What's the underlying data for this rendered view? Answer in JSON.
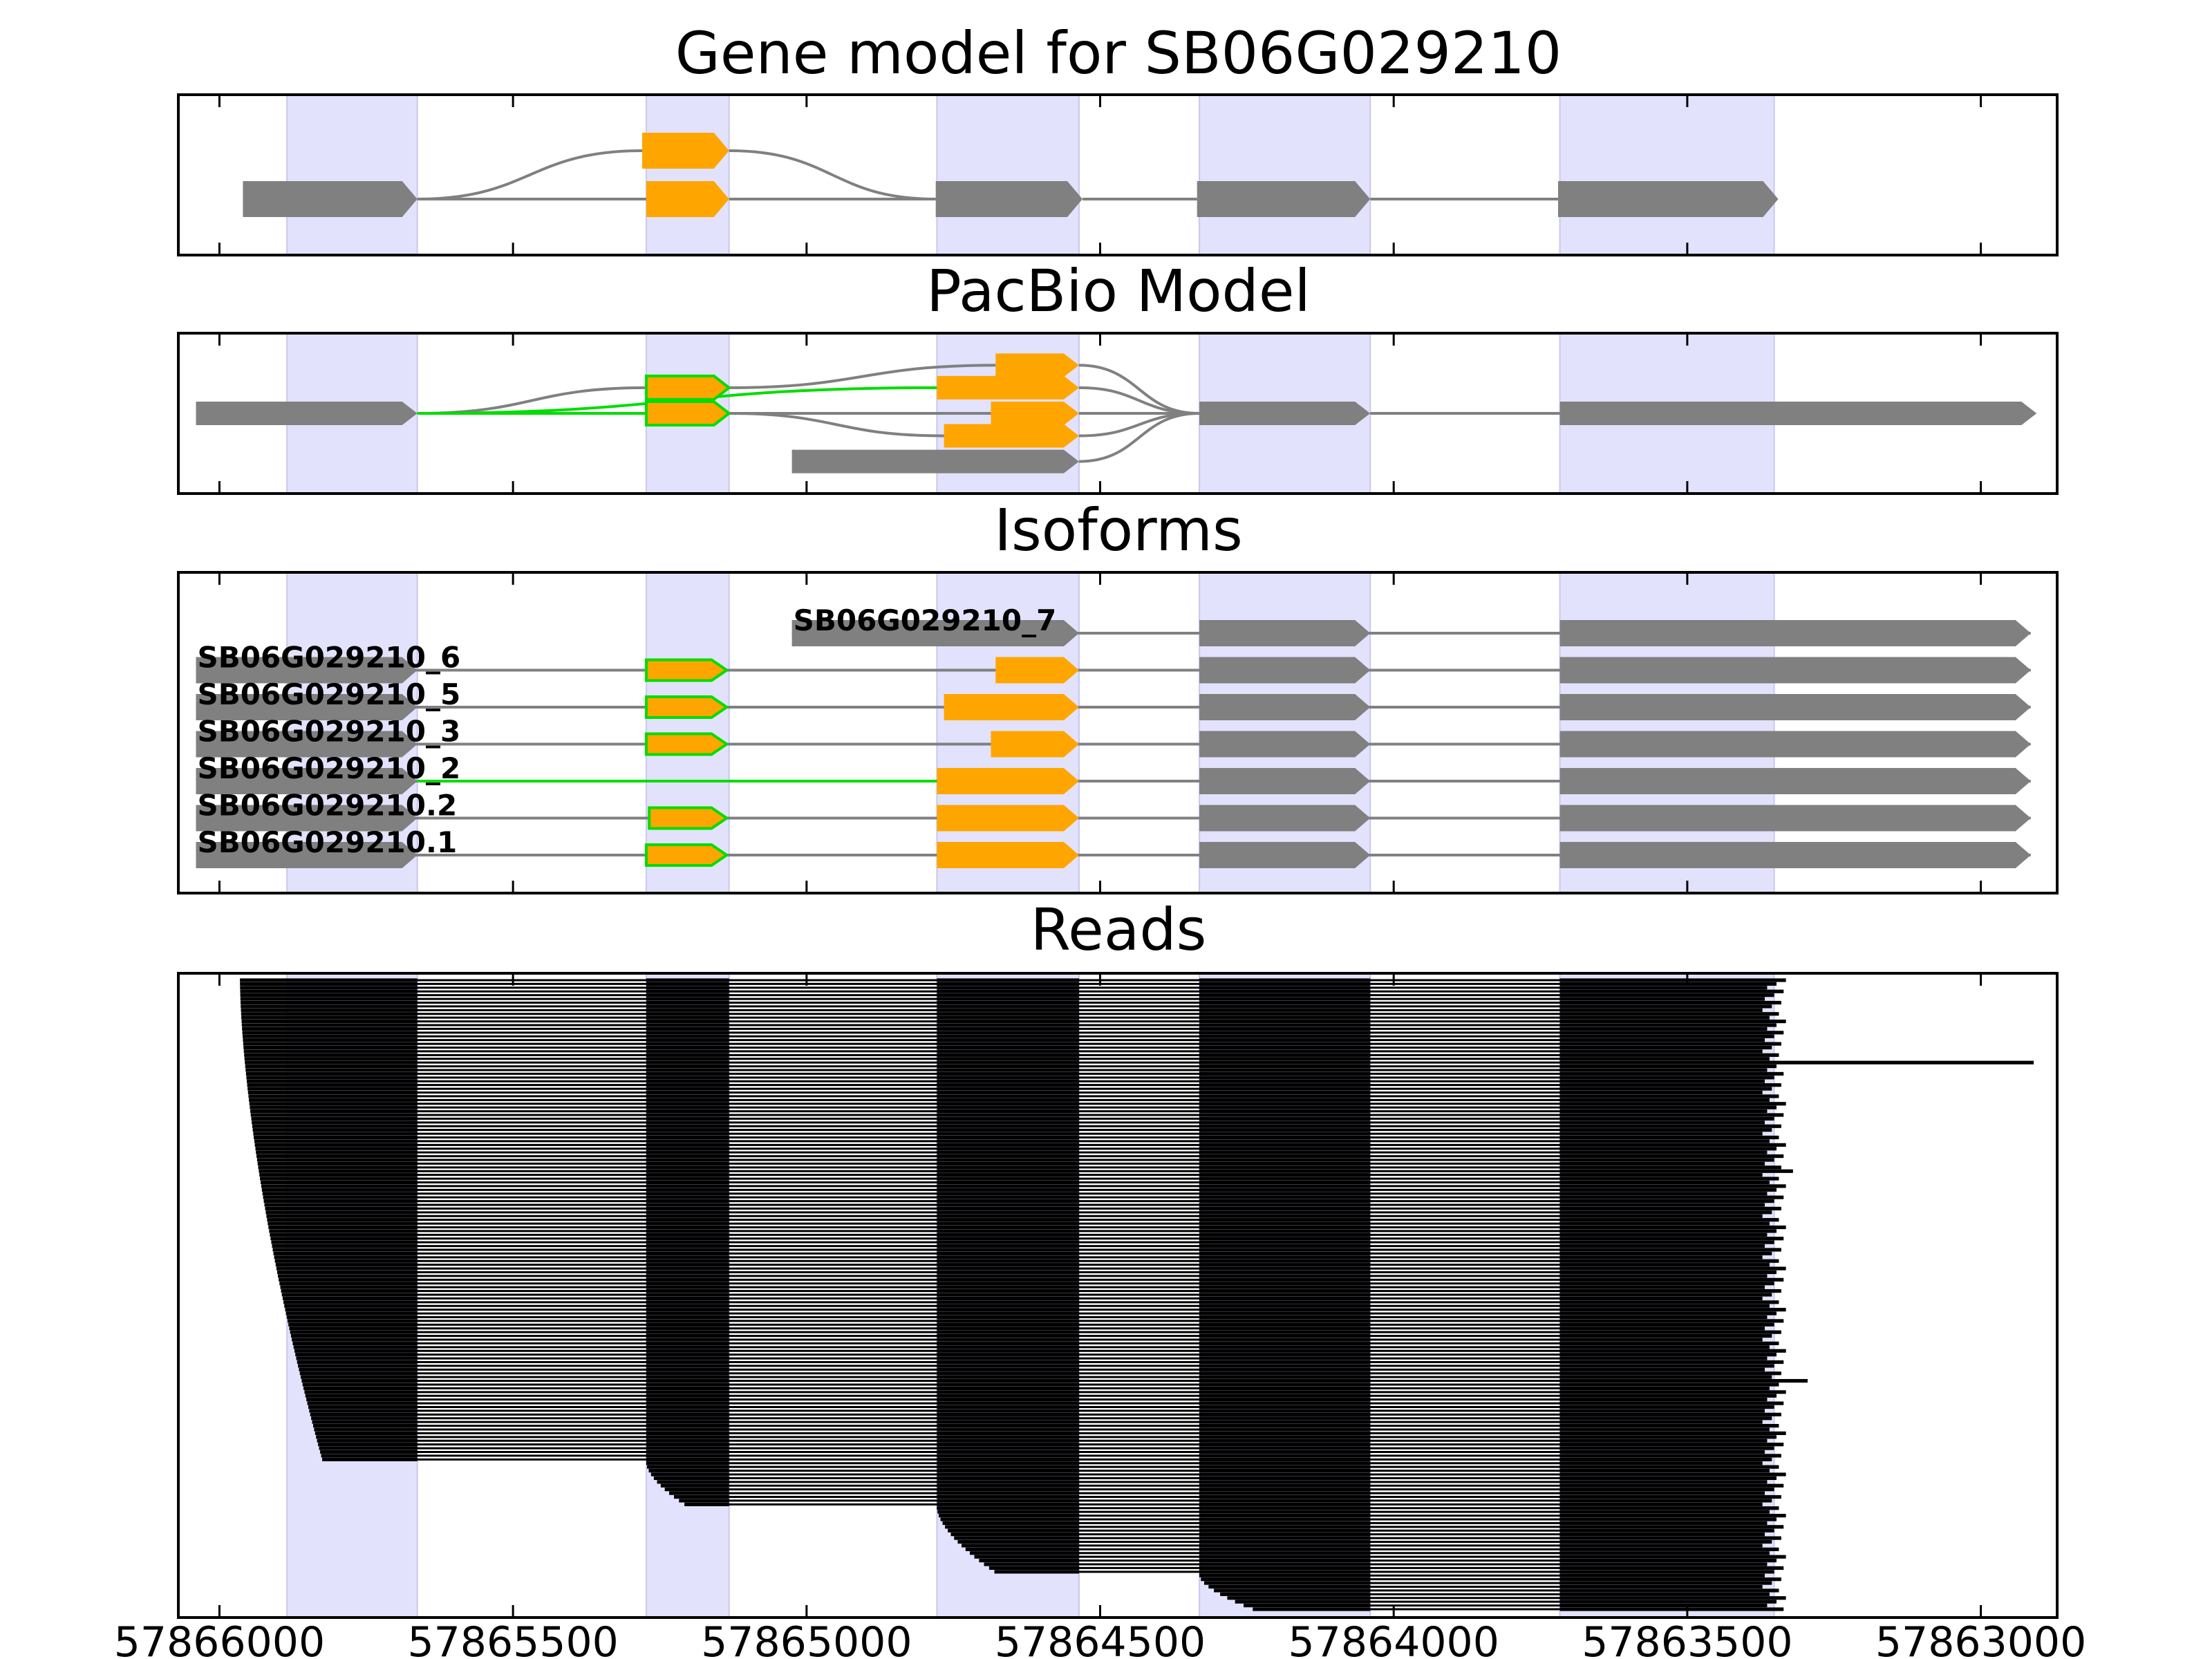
{
  "chart_data": {
    "type": "gene-structure",
    "xaxis": {
      "reversed": true,
      "xlim": [
        57866070,
        57862870
      ],
      "ticks": [
        57866000,
        57865500,
        57865000,
        57864500,
        57864000,
        57863500,
        57863000
      ],
      "tick_labels": [
        "57866000",
        "57865500",
        "57865000",
        "57864500",
        "57864000",
        "57863500",
        "57863000"
      ]
    },
    "highlight_color": "#e2e2fc",
    "colors": {
      "constitutive": "#808080",
      "alternative": "#ffa500",
      "novel_outline": "#00dd00",
      "read": "#000000",
      "intron": "#808080"
    },
    "highlight_regions": [
      [
        57865885,
        57865663
      ],
      [
        57865273,
        57865132
      ],
      [
        57864778,
        57864536
      ],
      [
        57864331,
        57864040
      ],
      [
        57863717,
        57863352
      ]
    ],
    "panels": [
      {
        "title": "Gene model for SB06G029210",
        "rows": 2,
        "exons": [
          {
            "start": 57865960,
            "end": 57865663,
            "row": 1,
            "color": "gray"
          },
          {
            "start": 57865280,
            "end": 57865132,
            "row": 0,
            "color": "orange"
          },
          {
            "start": 57865273,
            "end": 57865132,
            "row": 1,
            "color": "orange"
          },
          {
            "start": 57864780,
            "end": 57864530,
            "row": 1,
            "color": "gray"
          },
          {
            "start": 57864335,
            "end": 57864040,
            "row": 1,
            "color": "gray"
          },
          {
            "start": 57863720,
            "end": 57863345,
            "row": 1,
            "color": "gray"
          }
        ]
      },
      {
        "title": "PacBio Model",
        "exons": [
          {
            "start": 57866040,
            "end": 57865663,
            "y": 0.5,
            "color": "gray"
          },
          {
            "start": 57865273,
            "end": 57865132,
            "y": 0.34,
            "color": "orange",
            "outline": "green"
          },
          {
            "start": 57865273,
            "end": 57865132,
            "y": 0.5,
            "color": "orange",
            "outline": "green"
          },
          {
            "start": 57864678,
            "end": 57864536,
            "y": 0.2,
            "color": "orange"
          },
          {
            "start": 57864778,
            "end": 57864536,
            "y": 0.34,
            "color": "orange"
          },
          {
            "start": 57864686,
            "end": 57864536,
            "y": 0.5,
            "color": "orange"
          },
          {
            "start": 57864766,
            "end": 57864536,
            "y": 0.64,
            "color": "orange"
          },
          {
            "start": 57865025,
            "end": 57864536,
            "y": 0.8,
            "color": "gray"
          },
          {
            "start": 57864331,
            "end": 57864040,
            "y": 0.5,
            "color": "gray"
          },
          {
            "start": 57863717,
            "end": 57862905,
            "y": 0.5,
            "color": "gray"
          }
        ],
        "junctions": [
          {
            "from": 57865663,
            "fy": 0.5,
            "to": 57865273,
            "ty": 0.34,
            "color": "gray"
          },
          {
            "from": 57865663,
            "fy": 0.5,
            "to": 57865273,
            "ty": 0.5,
            "color": "green"
          },
          {
            "from": 57865663,
            "fy": 0.5,
            "to": 57864778,
            "ty": 0.34,
            "color": "green"
          },
          {
            "from": 57865132,
            "fy": 0.34,
            "to": 57864678,
            "ty": 0.2,
            "color": "gray"
          },
          {
            "from": 57865132,
            "fy": 0.5,
            "to": 57864686,
            "ty": 0.5,
            "color": "gray"
          },
          {
            "from": 57865132,
            "fy": 0.5,
            "to": 57864766,
            "ty": 0.64,
            "color": "gray"
          },
          {
            "from": 57864536,
            "fy": 0.2,
            "to": 57864331,
            "ty": 0.5,
            "color": "gray"
          },
          {
            "from": 57864536,
            "fy": 0.34,
            "to": 57864331,
            "ty": 0.5,
            "color": "gray"
          },
          {
            "from": 57864536,
            "fy": 0.5,
            "to": 57864331,
            "ty": 0.5,
            "color": "gray"
          },
          {
            "from": 57864536,
            "fy": 0.64,
            "to": 57864331,
            "ty": 0.5,
            "color": "gray"
          },
          {
            "from": 57864536,
            "fy": 0.8,
            "to": 57864331,
            "ty": 0.5,
            "color": "gray"
          },
          {
            "from": 57864040,
            "fy": 0.5,
            "to": 57863717,
            "ty": 0.5,
            "color": "gray"
          }
        ]
      },
      {
        "title": "Isoforms",
        "isoforms": [
          {
            "name": "SB06G029210_7",
            "exons": [
              [
                57865025,
                57864536,
                "gray"
              ],
              [
                57864331,
                57864040,
                "gray"
              ],
              [
                57863717,
                57862915,
                "gray"
              ]
            ]
          },
          {
            "name": "SB06G029210_6",
            "exons": [
              [
                57866040,
                57865663,
                "gray"
              ],
              [
                57865273,
                57865136,
                "orange-green"
              ],
              [
                57864678,
                57864536,
                "orange"
              ],
              [
                57864331,
                57864040,
                "gray"
              ],
              [
                57863717,
                57862915,
                "gray"
              ]
            ]
          },
          {
            "name": "SB06G029210_5",
            "exons": [
              [
                57866040,
                57865663,
                "gray"
              ],
              [
                57865273,
                57865136,
                "orange-green"
              ],
              [
                57864766,
                57864536,
                "orange"
              ],
              [
                57864331,
                57864040,
                "gray"
              ],
              [
                57863717,
                57862915,
                "gray"
              ]
            ]
          },
          {
            "name": "SB06G029210_3",
            "exons": [
              [
                57866040,
                57865663,
                "gray"
              ],
              [
                57865273,
                57865136,
                "orange-green"
              ],
              [
                57864686,
                57864536,
                "orange"
              ],
              [
                57864331,
                57864040,
                "gray"
              ],
              [
                57863717,
                57862915,
                "gray"
              ]
            ]
          },
          {
            "name": "SB06G029210_2",
            "intron_color": "green",
            "exons": [
              [
                57866040,
                57865663,
                "gray"
              ],
              [
                57864778,
                57864536,
                "orange"
              ],
              [
                57864331,
                57864040,
                "gray"
              ],
              [
                57863717,
                57862915,
                "gray"
              ]
            ]
          },
          {
            "name": "SB06G029210.2",
            "exons": [
              [
                57866040,
                57865663,
                "gray"
              ],
              [
                57865268,
                57865136,
                "orange-green"
              ],
              [
                57864778,
                57864536,
                "orange"
              ],
              [
                57864331,
                57864040,
                "gray"
              ],
              [
                57863717,
                57862915,
                "gray"
              ]
            ]
          },
          {
            "name": "SB06G029210.1",
            "exons": [
              [
                57866040,
                57865663,
                "gray"
              ],
              [
                57865273,
                57865136,
                "orange-green"
              ],
              [
                57864778,
                57864536,
                "orange"
              ],
              [
                57864331,
                57864040,
                "gray"
              ],
              [
                57863717,
                57862915,
                "gray"
              ]
            ]
          }
        ]
      },
      {
        "title": "Reads",
        "read_groups": [
          {
            "count": 129,
            "start_from": 57865965,
            "start_to": 57865825,
            "exons": [
              57865663,
              57865273,
              57865132,
              57864778,
              57864536,
              57864331,
              57864040,
              57863717
            ],
            "end": 57863352
          },
          {
            "count": 12,
            "start_from": 57865273,
            "start_to": 57865208,
            "exons": [
              57865132,
              57864778,
              57864536,
              57864331,
              57864040,
              57863717
            ],
            "end": 57863352
          },
          {
            "count": 18,
            "start_from": 57864778,
            "start_to": 57864680,
            "exons": [
              57864536,
              57864331,
              57864040,
              57863717
            ],
            "end": 57863352
          },
          {
            "count": 10,
            "start_from": 57864331,
            "start_to": 57864240,
            "exons": [
              57864040,
              57863717
            ],
            "end": 57863352
          }
        ],
        "long_tail_reads": [
          {
            "index": 22,
            "end": 57862910
          },
          {
            "index": 51,
            "end": 57863320
          },
          {
            "index": 107,
            "end": 57863295
          }
        ]
      }
    ]
  }
}
